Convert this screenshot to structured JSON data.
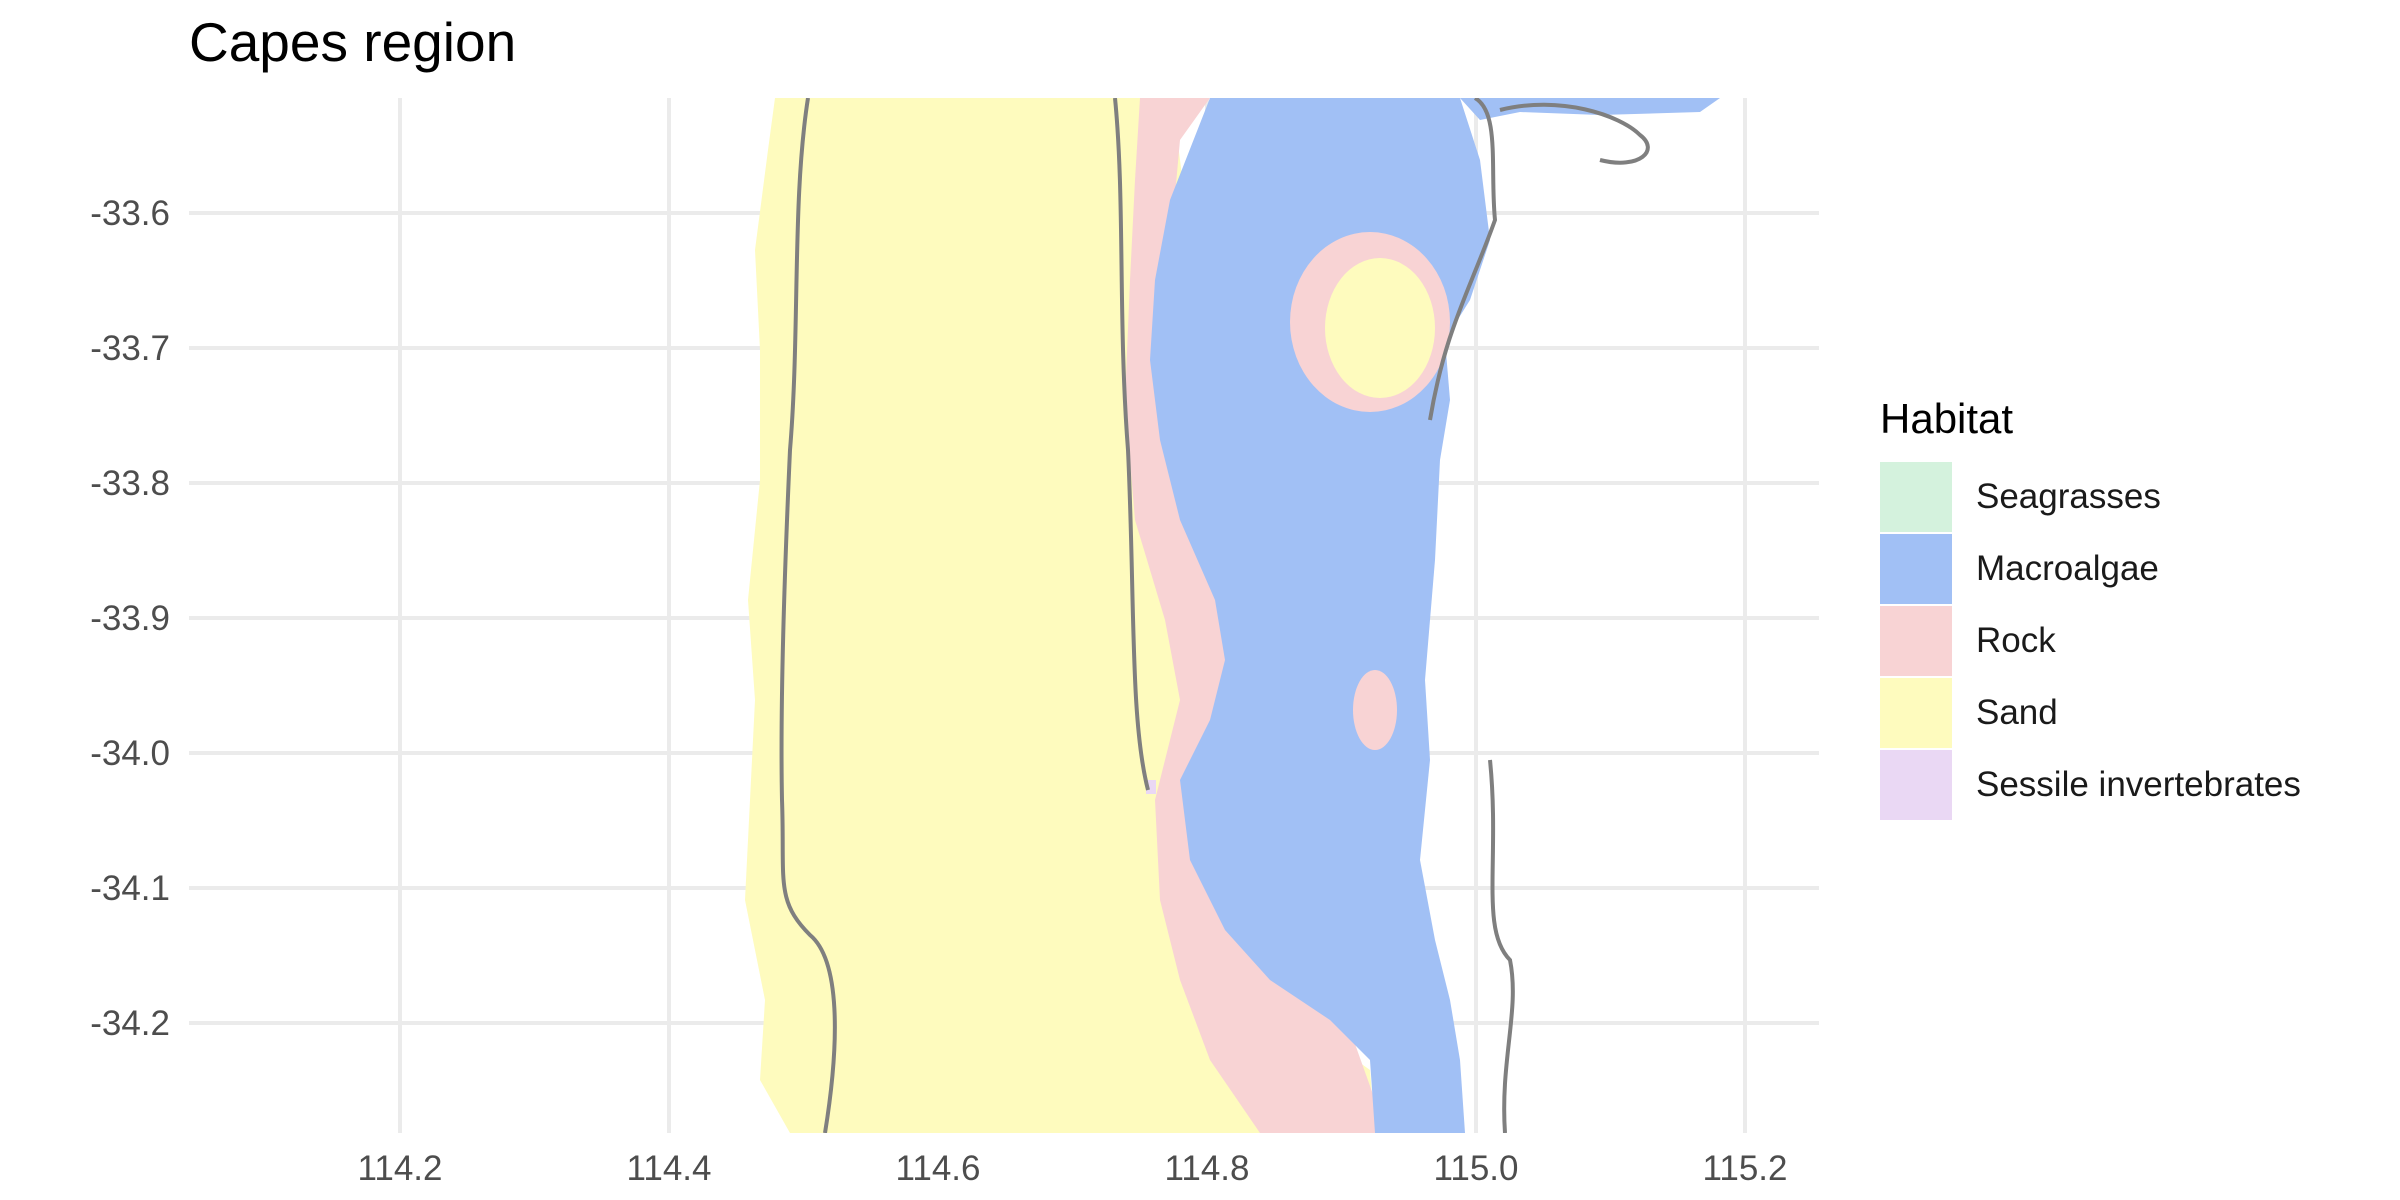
{
  "title": "Capes region",
  "legend": {
    "title": "Habitat",
    "items": [
      {
        "label": "Seagrasses",
        "color": "#d4f2dd"
      },
      {
        "label": "Macroalgae",
        "color": "#a1c0f5"
      },
      {
        "label": "Rock",
        "color": "#f8d3d4"
      },
      {
        "label": "Sand",
        "color": "#fefbbe"
      },
      {
        "label": "Sessile invertebrates",
        "color": "#ead8f4"
      }
    ]
  },
  "axes": {
    "x": {
      "ticks": [
        "114.2",
        "114.4",
        "114.6",
        "114.8",
        "115.0",
        "115.2"
      ]
    },
    "y": {
      "ticks": [
        "-33.6",
        "-33.7",
        "-33.8",
        "-33.9",
        "-34.0",
        "-34.1",
        "-34.2"
      ]
    },
    "grid": true
  },
  "colors": {
    "grid": "#ebebeb",
    "contour": "#7f7f7f",
    "tick_text": "#4d4d4d"
  }
}
